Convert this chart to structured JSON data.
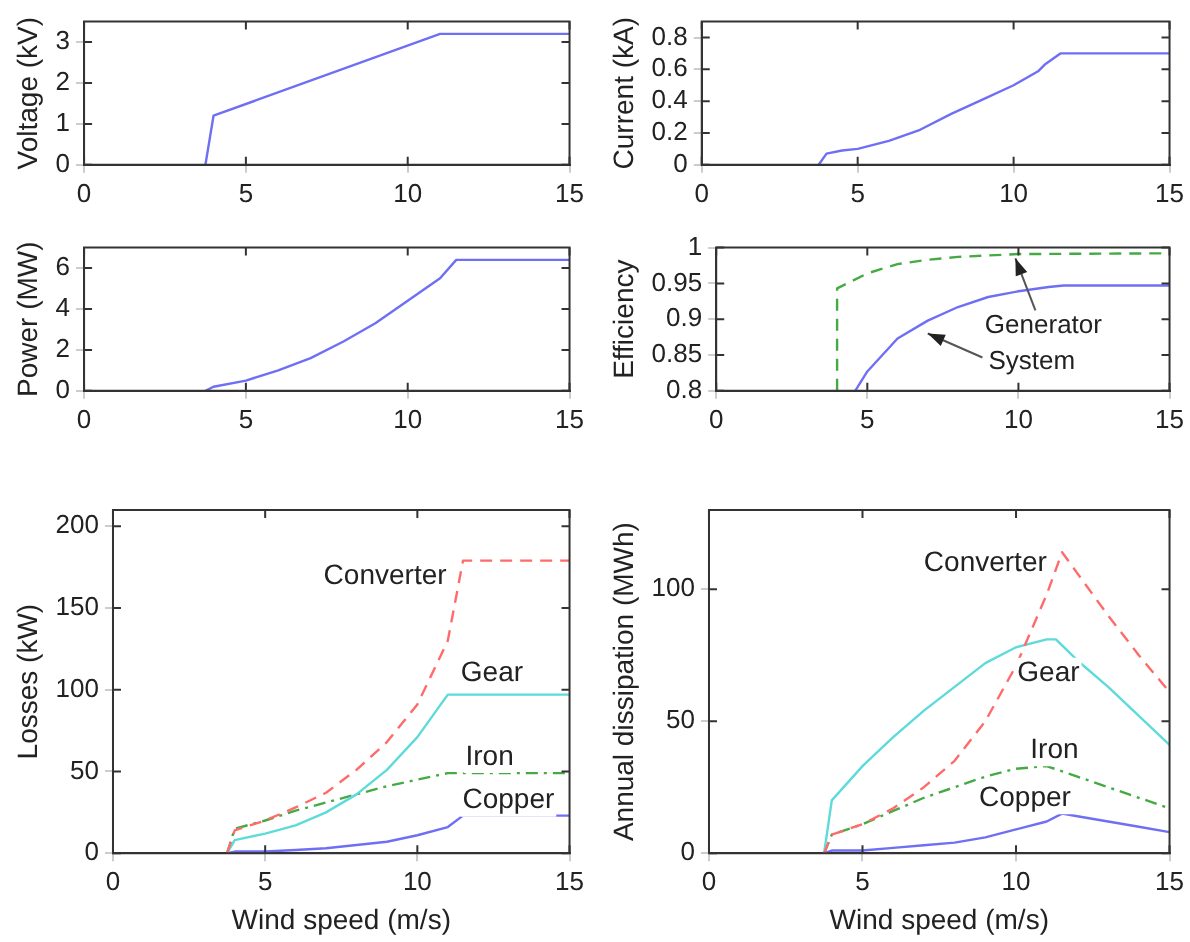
{
  "chart_data": [
    {
      "type": "line",
      "ylabel": "Voltage (kV)",
      "xlim": [
        0,
        15
      ],
      "xticks": [
        0,
        5,
        10,
        15
      ],
      "ylim": [
        0,
        3.5
      ],
      "yticks": [
        0,
        1,
        2,
        3
      ],
      "color": "#6f6ff5",
      "x": [
        3.75,
        4,
        11,
        15
      ],
      "values": [
        0,
        1.2,
        3.2,
        3.2
      ]
    },
    {
      "type": "line",
      "ylabel": "Current (kA)",
      "xlim": [
        0,
        15
      ],
      "xticks": [
        0,
        5,
        10,
        15
      ],
      "ylim": [
        0,
        0.9
      ],
      "yticks": [
        0,
        0.2,
        0.4,
        0.6,
        0.8
      ],
      "color": "#6f6ff5",
      "x": [
        3.75,
        4,
        4.5,
        5,
        6,
        7,
        8,
        9,
        10,
        10.8,
        11,
        11.5,
        15
      ],
      "values": [
        0,
        0.07,
        0.09,
        0.1,
        0.15,
        0.22,
        0.32,
        0.41,
        0.5,
        0.59,
        0.63,
        0.7,
        0.7
      ]
    },
    {
      "type": "line",
      "ylabel": "Power (MW)",
      "xlim": [
        0,
        15
      ],
      "xticks": [
        0,
        5,
        10,
        15
      ],
      "ylim": [
        0,
        7
      ],
      "yticks": [
        0,
        2,
        4,
        6
      ],
      "color": "#6f6ff5",
      "x": [
        3.75,
        4,
        5,
        6,
        7,
        8,
        9,
        10,
        11,
        11.5,
        15
      ],
      "values": [
        0,
        0.2,
        0.5,
        1,
        1.6,
        2.4,
        3.3,
        4.4,
        5.5,
        6.4,
        6.4
      ]
    },
    {
      "type": "line",
      "ylabel": "Efficiency",
      "xlim": [
        0,
        15
      ],
      "xticks": [
        0,
        5,
        10,
        15
      ],
      "ylim": [
        0.8,
        1
      ],
      "yticks": [
        0.8,
        0.85,
        0.9,
        0.95,
        1
      ],
      "annotations": [
        {
          "text": "Generator",
          "x": 9.9,
          "y": 0.985
        },
        {
          "text": "System",
          "x": 7,
          "y": 0.88
        }
      ],
      "series": [
        {
          "color": "#44aa44",
          "line_style": "dashed",
          "x": [
            4,
            4,
            5,
            6,
            7,
            8,
            10,
            15
          ],
          "values": [
            0.8,
            0.943,
            0.964,
            0.977,
            0.983,
            0.987,
            0.991,
            0.992
          ]
        },
        {
          "color": "#6f6ff5",
          "x": [
            4.6,
            5,
            6,
            7,
            8,
            9,
            10,
            11,
            11.5,
            15
          ],
          "values": [
            0.8,
            0.827,
            0.873,
            0.898,
            0.917,
            0.931,
            0.939,
            0.945,
            0.947,
            0.947
          ]
        }
      ]
    },
    {
      "type": "line",
      "xlabel": "Wind speed (m/s)",
      "ylabel": "Losses (kW)",
      "xlim": [
        0,
        15
      ],
      "xticks": [
        0,
        5,
        10,
        15
      ],
      "ylim": [
        0,
        210
      ],
      "yticks": [
        0,
        50,
        100,
        150,
        200
      ],
      "series": [
        {
          "name": "Converter",
          "color": "#ff6b6b",
          "line_style": "dashed",
          "x": [
            3.75,
            4,
            5,
            6,
            7,
            8,
            9,
            10,
            11,
            11.5,
            15
          ],
          "values": [
            0,
            14,
            20,
            28,
            37,
            51,
            68,
            91,
            130,
            179,
            179
          ]
        },
        {
          "name": "Gear",
          "color": "#5fdada",
          "x": [
            3.75,
            4,
            5,
            6,
            7,
            8,
            9,
            10,
            11,
            15
          ],
          "values": [
            0,
            8,
            12,
            17,
            25,
            36,
            51,
            71,
            97,
            97
          ]
        },
        {
          "name": "Iron",
          "color": "#44aa44",
          "line_style": "dotted",
          "x": [
            3.75,
            4,
            5,
            6,
            7,
            8,
            9,
            10,
            11,
            15
          ],
          "values": [
            0,
            15,
            20,
            26,
            31,
            36,
            41,
            45,
            49,
            49
          ]
        },
        {
          "name": "Copper",
          "color": "#6f6ff5",
          "x": [
            3.75,
            4,
            5,
            6,
            7,
            8,
            9,
            10,
            11,
            11.5,
            15
          ],
          "values": [
            0,
            1,
            1,
            2,
            3,
            5,
            7,
            11,
            16,
            23,
            23
          ]
        }
      ]
    },
    {
      "type": "line",
      "xlabel": "Wind speed (m/s)",
      "ylabel": "Annual dissipation (MWh)",
      "xlim": [
        0,
        15
      ],
      "xticks": [
        0,
        5,
        10,
        15
      ],
      "ylim": [
        0,
        130
      ],
      "yticks": [
        0,
        50,
        100
      ],
      "series": [
        {
          "name": "Converter",
          "color": "#ff6b6b",
          "line_style": "dashed",
          "x": [
            3.75,
            4,
            5,
            6,
            7,
            8,
            9,
            10,
            11,
            11.5,
            12,
            13,
            14,
            15
          ],
          "values": [
            0,
            7,
            11,
            17,
            25,
            35,
            50,
            71,
            98,
            114,
            106,
            90,
            75,
            61
          ]
        },
        {
          "name": "Gear",
          "color": "#5fdada",
          "x": [
            3.75,
            4,
            5,
            6,
            7,
            8,
            9,
            10,
            11,
            11.3,
            12,
            13,
            14,
            15
          ],
          "values": [
            0,
            20,
            33,
            44,
            54,
            63,
            72,
            78,
            81,
            81,
            73,
            63,
            52,
            41
          ]
        },
        {
          "name": "Iron",
          "color": "#44aa44",
          "line_style": "dotted",
          "x": [
            3.75,
            4,
            5,
            6,
            7,
            8,
            9,
            10,
            11,
            12,
            13,
            14,
            15
          ],
          "values": [
            0,
            7,
            11,
            16,
            21,
            25,
            29,
            32,
            33,
            29,
            25,
            21,
            17
          ]
        },
        {
          "name": "Copper",
          "color": "#6f6ff5",
          "x": [
            3.75,
            4,
            5,
            6,
            7,
            8,
            9,
            10,
            11,
            11.5,
            12,
            13,
            14,
            15
          ],
          "values": [
            0,
            1,
            1,
            2,
            3,
            4,
            6,
            9,
            12,
            15,
            14,
            12,
            10,
            8
          ]
        }
      ]
    }
  ]
}
